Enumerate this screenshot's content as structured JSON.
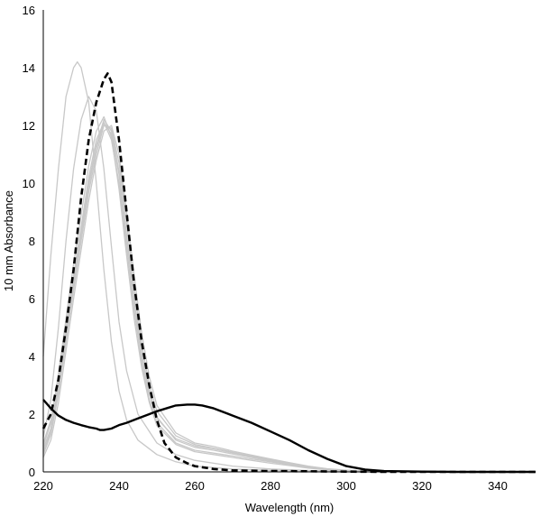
{
  "chart_data": {
    "type": "line",
    "title": "",
    "xlabel": "Wavelength (nm)",
    "ylabel": "10 mm Absorbance",
    "xlim": [
      220,
      350
    ],
    "ylim": [
      0,
      16
    ],
    "xticks": [
      220,
      240,
      260,
      280,
      300,
      320,
      340
    ],
    "yticks": [
      0,
      2,
      4,
      6,
      8,
      10,
      12,
      14,
      16
    ],
    "grid": false,
    "legend": "none",
    "series": [
      {
        "style": "gray-thin",
        "color": "#c8c8c8",
        "x": [
          220,
          222,
          224,
          226,
          228,
          229,
          230,
          232,
          234,
          236,
          238,
          240,
          242,
          245,
          250,
          255,
          260,
          270,
          280,
          290,
          300,
          310,
          320,
          330,
          340,
          350
        ],
        "y": [
          4.0,
          7.5,
          10.5,
          13.0,
          14.0,
          14.2,
          14.0,
          12.8,
          10.0,
          7.0,
          4.5,
          2.8,
          1.8,
          1.1,
          0.6,
          0.35,
          0.2,
          0.1,
          0.05,
          0.03,
          0.02,
          0.01,
          0.01,
          0.0,
          0.0,
          0.0
        ]
      },
      {
        "style": "gray-thin",
        "color": "#c8c8c8",
        "x": [
          220,
          222,
          224,
          226,
          228,
          230,
          232,
          234,
          236,
          238,
          240,
          242,
          245,
          250,
          255,
          260,
          270,
          280,
          290,
          300,
          310,
          320,
          330,
          340,
          350
        ],
        "y": [
          1.2,
          2.5,
          5.0,
          8.0,
          10.5,
          12.2,
          13.0,
          12.5,
          10.5,
          7.8,
          5.2,
          3.5,
          2.0,
          1.0,
          0.6,
          0.4,
          0.2,
          0.1,
          0.05,
          0.03,
          0.02,
          0.01,
          0.0,
          0.0,
          0.0
        ]
      },
      {
        "style": "gray-thin",
        "color": "#c8c8c8",
        "x": [
          220,
          222,
          224,
          226,
          228,
          230,
          232,
          234,
          236,
          238,
          240,
          242,
          244,
          246,
          248,
          250,
          255,
          260,
          265,
          270,
          275,
          280,
          285,
          290,
          295,
          300,
          305,
          310,
          320,
          330,
          340,
          350
        ],
        "y": [
          1.0,
          1.8,
          3.2,
          5.0,
          6.8,
          8.5,
          10.2,
          11.5,
          12.1,
          11.5,
          10.0,
          7.8,
          5.6,
          3.8,
          2.5,
          1.7,
          1.0,
          0.75,
          0.65,
          0.55,
          0.45,
          0.35,
          0.25,
          0.15,
          0.08,
          0.04,
          0.02,
          0.01,
          0.0,
          0.0,
          0.0,
          0.0
        ]
      },
      {
        "style": "gray-thin",
        "color": "#c8c8c8",
        "x": [
          220,
          222,
          224,
          226,
          228,
          230,
          232,
          234,
          236,
          238,
          240,
          242,
          244,
          246,
          248,
          250,
          255,
          260,
          265,
          270,
          275,
          280,
          285,
          290,
          295,
          300,
          305,
          310,
          320,
          330,
          340,
          350
        ],
        "y": [
          0.8,
          1.5,
          3.0,
          4.8,
          6.6,
          8.3,
          10.0,
          11.3,
          12.2,
          11.8,
          10.4,
          8.2,
          6.0,
          4.1,
          2.8,
          1.9,
          1.1,
          0.85,
          0.75,
          0.62,
          0.5,
          0.38,
          0.28,
          0.17,
          0.09,
          0.05,
          0.02,
          0.01,
          0.0,
          0.0,
          0.0,
          0.0
        ]
      },
      {
        "style": "gray-thin",
        "color": "#c8c8c8",
        "x": [
          220,
          222,
          224,
          226,
          228,
          230,
          232,
          234,
          236,
          238,
          240,
          242,
          244,
          246,
          248,
          250,
          255,
          260,
          265,
          270,
          275,
          280,
          285,
          290,
          295,
          300,
          305,
          310,
          320,
          330,
          340,
          350
        ],
        "y": [
          0.6,
          1.3,
          2.7,
          4.5,
          6.3,
          8.0,
          9.7,
          11.0,
          12.0,
          11.9,
          10.7,
          8.6,
          6.4,
          4.4,
          3.0,
          2.1,
          1.25,
          0.95,
          0.82,
          0.68,
          0.55,
          0.42,
          0.3,
          0.19,
          0.1,
          0.05,
          0.02,
          0.01,
          0.0,
          0.0,
          0.0,
          0.0
        ]
      },
      {
        "style": "gray-thin",
        "color": "#c8c8c8",
        "x": [
          220,
          222,
          224,
          226,
          228,
          230,
          232,
          234,
          236,
          238,
          240,
          242,
          244,
          246,
          248,
          250,
          255,
          260,
          265,
          270,
          275,
          280,
          285,
          290,
          295,
          300,
          305,
          310,
          320,
          330,
          340,
          350
        ],
        "y": [
          0.5,
          1.1,
          2.4,
          4.2,
          6.0,
          7.7,
          9.4,
          10.8,
          11.8,
          12.0,
          11.0,
          9.0,
          6.8,
          4.8,
          3.3,
          2.3,
          1.35,
          1.0,
          0.88,
          0.72,
          0.58,
          0.45,
          0.32,
          0.2,
          0.11,
          0.06,
          0.03,
          0.01,
          0.0,
          0.0,
          0.0,
          0.0
        ]
      },
      {
        "style": "gray-thin",
        "color": "#c8c8c8",
        "x": [
          220,
          222,
          224,
          226,
          228,
          230,
          232,
          234,
          236,
          238,
          240,
          242,
          244,
          246,
          248,
          250,
          255,
          260,
          265,
          270,
          275,
          280,
          285,
          290,
          295,
          300,
          305,
          310,
          320,
          330,
          340,
          350
        ],
        "y": [
          0.9,
          1.7,
          3.4,
          5.3,
          7.2,
          8.9,
          10.6,
          11.8,
          12.3,
          11.6,
          9.8,
          7.5,
          5.3,
          3.6,
          2.4,
          1.6,
          0.95,
          0.7,
          0.6,
          0.5,
          0.4,
          0.3,
          0.22,
          0.13,
          0.07,
          0.04,
          0.02,
          0.01,
          0.0,
          0.0,
          0.0,
          0.0
        ]
      },
      {
        "style": "gray-thin",
        "color": "#c8c8c8",
        "x": [
          220,
          222,
          224,
          226,
          228,
          230,
          232,
          234,
          236,
          238,
          240,
          242,
          244,
          246,
          248,
          250,
          255,
          260,
          265,
          270,
          275,
          280,
          285,
          290,
          295,
          300,
          305,
          310,
          320,
          330,
          340,
          350
        ],
        "y": [
          0.7,
          1.4,
          2.9,
          4.7,
          6.5,
          8.2,
          9.9,
          11.2,
          12.1,
          11.7,
          10.3,
          8.1,
          5.9,
          4.0,
          2.7,
          1.85,
          1.15,
          0.9,
          0.8,
          0.66,
          0.53,
          0.4,
          0.29,
          0.18,
          0.1,
          0.05,
          0.02,
          0.01,
          0.0,
          0.0,
          0.0,
          0.0
        ]
      },
      {
        "style": "dashed",
        "color": "#000000",
        "x": [
          220,
          222,
          224,
          226,
          228,
          230,
          232,
          234,
          236,
          237,
          238,
          240,
          242,
          244,
          246,
          248,
          250,
          252,
          255,
          258,
          260,
          265,
          270,
          280,
          290,
          300,
          310,
          320,
          330,
          340,
          350
        ],
        "y": [
          1.5,
          2.0,
          3.2,
          5.0,
          7.0,
          9.5,
          11.5,
          12.8,
          13.6,
          13.8,
          13.5,
          11.5,
          9.0,
          6.5,
          4.5,
          3.0,
          1.8,
          1.0,
          0.5,
          0.3,
          0.2,
          0.1,
          0.05,
          0.03,
          0.02,
          0.01,
          0.0,
          0.0,
          0.0,
          0.0,
          0.0
        ]
      },
      {
        "style": "solid",
        "color": "#000000",
        "x": [
          220,
          222,
          224,
          226,
          228,
          230,
          232,
          234,
          235,
          236,
          238,
          240,
          242,
          245,
          248,
          250,
          253,
          255,
          258,
          260,
          262,
          265,
          268,
          270,
          275,
          280,
          285,
          290,
          295,
          300,
          305,
          310,
          320,
          330,
          340,
          350
        ],
        "y": [
          2.5,
          2.2,
          1.95,
          1.8,
          1.7,
          1.62,
          1.55,
          1.5,
          1.45,
          1.45,
          1.5,
          1.62,
          1.7,
          1.85,
          2.0,
          2.1,
          2.22,
          2.3,
          2.33,
          2.33,
          2.3,
          2.2,
          2.05,
          1.95,
          1.7,
          1.4,
          1.1,
          0.75,
          0.45,
          0.2,
          0.08,
          0.03,
          0.01,
          0.0,
          0.0,
          0.0
        ]
      }
    ]
  }
}
